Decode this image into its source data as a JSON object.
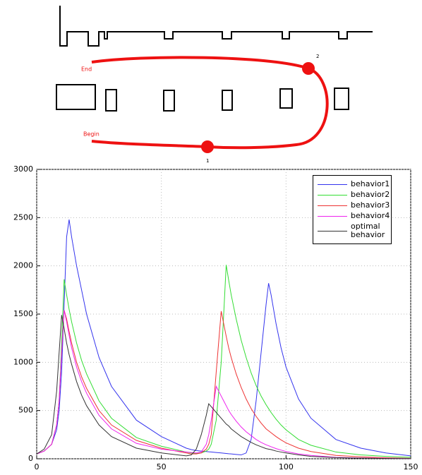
{
  "diagram": {
    "end_label": "End",
    "begin_label": "Begin",
    "point_labels": [
      "1",
      "2"
    ]
  },
  "chart_data": {
    "type": "line",
    "x": [
      0,
      3,
      6,
      8,
      9,
      10,
      11,
      12,
      13,
      14,
      16,
      18,
      20,
      25,
      30,
      40,
      50,
      60,
      62,
      64,
      66,
      68,
      69,
      70,
      72,
      74,
      75,
      76,
      77,
      78,
      80,
      82,
      84,
      86,
      88,
      90,
      92,
      93,
      94,
      96,
      98,
      100,
      105,
      110,
      120,
      130,
      140,
      150
    ],
    "series": [
      {
        "name": "behavior1",
        "color": "#3333ee",
        "values": [
          50,
          80,
          150,
          300,
          500,
          900,
          1600,
          2300,
          2480,
          2300,
          2000,
          1750,
          1500,
          1050,
          750,
          400,
          230,
          110,
          95,
          85,
          80,
          75,
          72,
          70,
          65,
          60,
          58,
          55,
          52,
          50,
          45,
          40,
          60,
          200,
          600,
          1100,
          1600,
          1820,
          1700,
          1400,
          1150,
          950,
          620,
          420,
          200,
          110,
          60,
          30
        ]
      },
      {
        "name": "behavior2",
        "color": "#33dd33",
        "values": [
          50,
          80,
          150,
          350,
          600,
          1200,
          1860,
          1700,
          1550,
          1420,
          1200,
          1020,
          880,
          600,
          420,
          220,
          130,
          70,
          60,
          55,
          60,
          80,
          100,
          150,
          400,
          1000,
          1500,
          2010,
          1850,
          1700,
          1450,
          1230,
          1050,
          890,
          760,
          650,
          560,
          520,
          480,
          410,
          350,
          300,
          200,
          140,
          70,
          40,
          25,
          15
        ]
      },
      {
        "name": "behavior3",
        "color": "#ee3333",
        "values": [
          50,
          80,
          150,
          350,
          600,
          1100,
          1540,
          1450,
          1320,
          1200,
          1000,
          850,
          730,
          500,
          350,
          190,
          110,
          60,
          50,
          50,
          60,
          100,
          150,
          250,
          900,
          1530,
          1400,
          1270,
          1150,
          1050,
          880,
          740,
          620,
          520,
          440,
          370,
          310,
          290,
          270,
          230,
          195,
          165,
          110,
          75,
          35,
          20,
          10,
          5
        ]
      },
      {
        "name": "behavior4",
        "color": "#ee22ee",
        "values": [
          50,
          80,
          150,
          350,
          600,
          1100,
          1540,
          1420,
          1280,
          1150,
          950,
          800,
          680,
          450,
          310,
          160,
          100,
          70,
          65,
          60,
          70,
          150,
          250,
          400,
          750,
          650,
          600,
          550,
          500,
          460,
          390,
          330,
          280,
          240,
          200,
          170,
          145,
          135,
          125,
          105,
          90,
          75,
          50,
          35,
          15,
          8,
          5,
          3
        ]
      },
      {
        "name": "optimal behavior",
        "color": "#333333",
        "values": [
          50,
          100,
          250,
          700,
          1100,
          1490,
          1350,
          1200,
          1080,
          980,
          800,
          660,
          550,
          350,
          230,
          110,
          60,
          30,
          40,
          100,
          250,
          450,
          570,
          540,
          480,
          420,
          390,
          360,
          340,
          310,
          270,
          230,
          200,
          170,
          145,
          125,
          105,
          100,
          95,
          80,
          70,
          60,
          40,
          25,
          12,
          6,
          3,
          2
        ]
      }
    ],
    "xlim": [
      0,
      150
    ],
    "xticks": [
      0,
      50,
      100,
      150
    ],
    "ylim": [
      0,
      3000
    ],
    "yticks": [
      0,
      500,
      1000,
      1500,
      2000,
      2500,
      3000
    ],
    "grid": true,
    "legend": "top-right"
  }
}
